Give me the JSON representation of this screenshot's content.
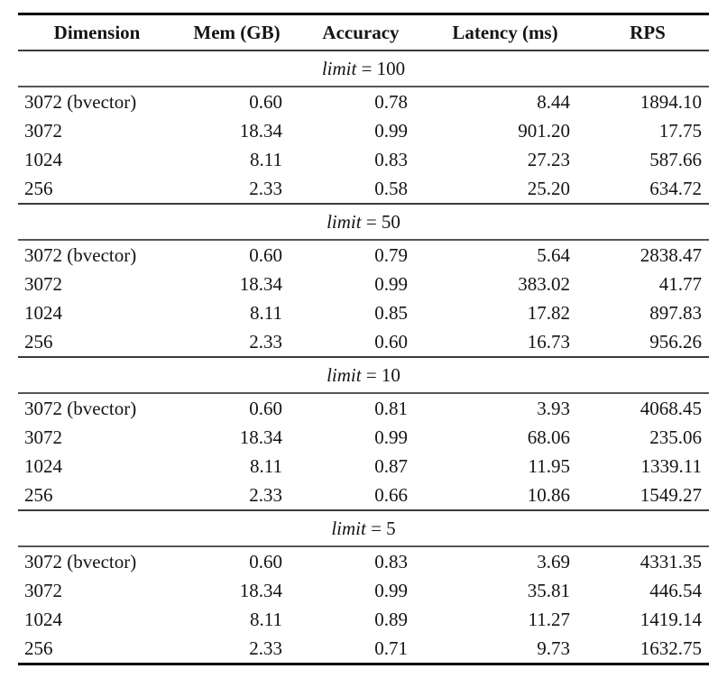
{
  "page": {
    "background": "#ffffff",
    "text_color": "#141414",
    "rule_color_heavy": "#000000",
    "rule_color_light": "#3a3a3a"
  },
  "table": {
    "columns": [
      "Dimension",
      "Mem (GB)",
      "Accuracy",
      "Latency (ms)",
      "RPS"
    ],
    "sections": [
      {
        "limit_var": "limit",
        "limit_eq": "=",
        "limit_value": "100",
        "rows": [
          [
            "3072 (bvector)",
            "0.60",
            "0.78",
            "8.44",
            "1894.10"
          ],
          [
            "3072",
            "18.34",
            "0.99",
            "901.20",
            "17.75"
          ],
          [
            "1024",
            "8.11",
            "0.83",
            "27.23",
            "587.66"
          ],
          [
            "256",
            "2.33",
            "0.58",
            "25.20",
            "634.72"
          ]
        ]
      },
      {
        "limit_var": "limit",
        "limit_eq": "=",
        "limit_value": "50",
        "rows": [
          [
            "3072 (bvector)",
            "0.60",
            "0.79",
            "5.64",
            "2838.47"
          ],
          [
            "3072",
            "18.34",
            "0.99",
            "383.02",
            "41.77"
          ],
          [
            "1024",
            "8.11",
            "0.85",
            "17.82",
            "897.83"
          ],
          [
            "256",
            "2.33",
            "0.60",
            "16.73",
            "956.26"
          ]
        ]
      },
      {
        "limit_var": "limit",
        "limit_eq": "=",
        "limit_value": "10",
        "rows": [
          [
            "3072 (bvector)",
            "0.60",
            "0.81",
            "3.93",
            "4068.45"
          ],
          [
            "3072",
            "18.34",
            "0.99",
            "68.06",
            "235.06"
          ],
          [
            "1024",
            "8.11",
            "0.87",
            "11.95",
            "1339.11"
          ],
          [
            "256",
            "2.33",
            "0.66",
            "10.86",
            "1549.27"
          ]
        ]
      },
      {
        "limit_var": "limit",
        "limit_eq": "=",
        "limit_value": "5",
        "rows": [
          [
            "3072 (bvector)",
            "0.60",
            "0.83",
            "3.69",
            "4331.35"
          ],
          [
            "3072",
            "18.34",
            "0.99",
            "35.81",
            "446.54"
          ],
          [
            "1024",
            "8.11",
            "0.89",
            "11.27",
            "1419.14"
          ],
          [
            "256",
            "2.33",
            "0.71",
            "9.73",
            "1632.75"
          ]
        ]
      }
    ]
  }
}
